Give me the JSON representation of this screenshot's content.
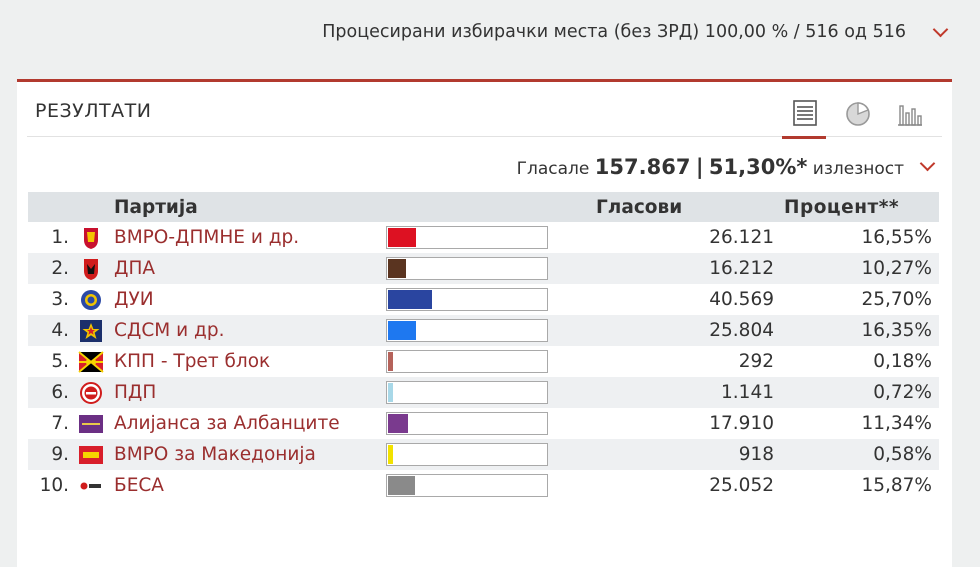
{
  "header": {
    "processed_text": "Процесирани избирачки места (без ЗРД) 100,00 % / 516 од 516"
  },
  "panel": {
    "title": "РЕЗУЛТАТИ",
    "turnout_prefix": "Гласале",
    "votes_cast": "157.867",
    "separator": "|",
    "turnout_pct": "51,30%*",
    "turnout_suffix": "излезност"
  },
  "view_icons": [
    "table-view-icon",
    "pie-chart-view-icon",
    "bar-chart-view-icon"
  ],
  "table": {
    "headers": {
      "party": "Партија",
      "votes": "Гласови",
      "percent": "Процент**"
    },
    "rows": [
      {
        "num": "1.",
        "party": "ВМРО-ДПМНЕ и др.",
        "votes": "26.121",
        "percent": "16,55%",
        "share": 16.55,
        "color": "#dd1122",
        "logo": "lion-shield"
      },
      {
        "num": "2.",
        "party": "ДПА",
        "votes": "16.212",
        "percent": "10,27%",
        "share": 10.27,
        "color": "#5a3420",
        "logo": "eagle-shield"
      },
      {
        "num": "3.",
        "party": "ДУИ",
        "votes": "40.569",
        "percent": "25,70%",
        "share": 25.7,
        "color": "#2a45a0",
        "logo": "blue-circle"
      },
      {
        "num": "4.",
        "party": "СДСМ и др.",
        "votes": "25.804",
        "percent": "16,35%",
        "share": 16.35,
        "color": "#1e78f0",
        "logo": "star-square"
      },
      {
        "num": "5.",
        "party": "КПП - Трет блок",
        "votes": "292",
        "percent": "0,18%",
        "share": 0.18,
        "color": "#b5625a",
        "logo": "sun-flag"
      },
      {
        "num": "6.",
        "party": "ПДП",
        "votes": "1.141",
        "percent": "0,72%",
        "share": 0.72,
        "color": "#a8d8e8",
        "logo": "red-circle"
      },
      {
        "num": "7.",
        "party": "Алијанса за Албанците",
        "votes": "17.910",
        "percent": "11,34%",
        "share": 11.34,
        "color": "#7a3a8e",
        "logo": "purple-block"
      },
      {
        "num": "9.",
        "party": "ВМРО за Македонија",
        "votes": "918",
        "percent": "0,58%",
        "share": 0.58,
        "color": "#f2e200",
        "logo": "red-box"
      },
      {
        "num": "10.",
        "party": "БЕСА",
        "votes": "25.052",
        "percent": "15,87%",
        "share": 15.87,
        "color": "#8a8a8a",
        "logo": "besa-text"
      }
    ]
  }
}
